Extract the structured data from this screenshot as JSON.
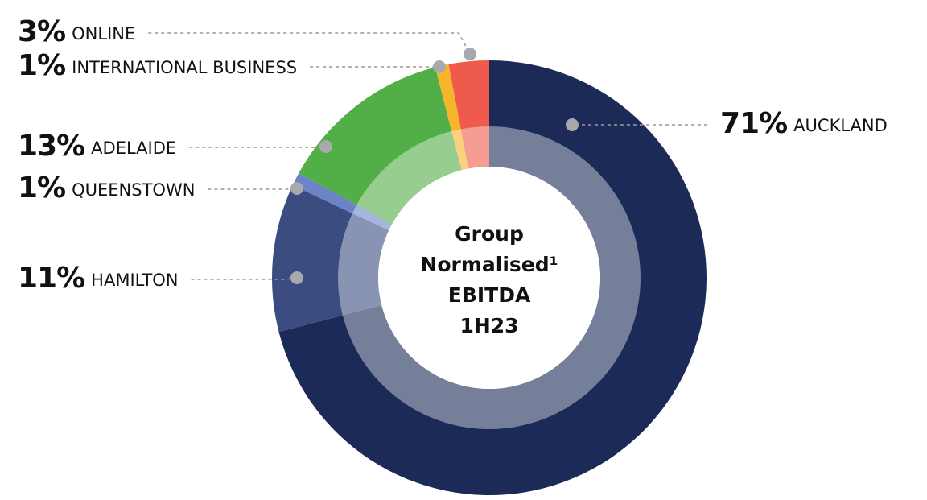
{
  "chart_data": {
    "type": "donut",
    "center_text": [
      "Group",
      "Normalised¹",
      "EBITDA",
      "1H23"
    ],
    "categories": [
      "AUCKLAND",
      "HAMILTON",
      "QUEENSTOWN",
      "ADELAIDE",
      "INTERNATIONAL BUSINESS",
      "ONLINE"
    ],
    "values": [
      71,
      11,
      1,
      13,
      1,
      3
    ],
    "value_labels": [
      "71%",
      "11%",
      "1%",
      "13%",
      "1%",
      "3%"
    ],
    "colors": [
      "#1b2a56",
      "#3b4d80",
      "#6c84c6",
      "#52ae47",
      "#f7b52b",
      "#ee5a4c"
    ]
  }
}
